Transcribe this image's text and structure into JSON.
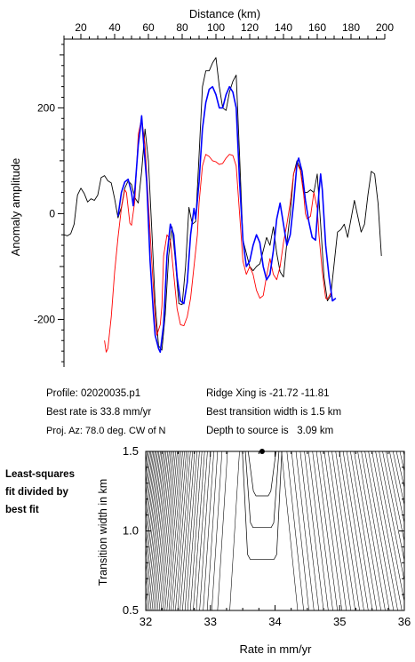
{
  "chart_data": [
    {
      "type": "line",
      "xlabel": "Distance (km)",
      "ylabel": "Anomaly amplitude",
      "xlim": [
        10,
        200
      ],
      "ylim": [
        -290,
        330
      ],
      "xticks": [
        20,
        40,
        60,
        80,
        100,
        120,
        140,
        160,
        180,
        200
      ],
      "yticks": [
        -200,
        0,
        200
      ],
      "grid": false,
      "series": [
        {
          "color": "#000000",
          "points": [
            [
              10,
              -40
            ],
            [
              12,
              -42
            ],
            [
              14,
              -38
            ],
            [
              16,
              -20
            ],
            [
              18,
              35
            ],
            [
              20,
              48
            ],
            [
              22,
              38
            ],
            [
              24,
              22
            ],
            [
              26,
              28
            ],
            [
              28,
              25
            ],
            [
              30,
              35
            ],
            [
              32,
              68
            ],
            [
              34,
              72
            ],
            [
              36,
              62
            ],
            [
              38,
              58
            ],
            [
              40,
              28
            ],
            [
              42,
              -8
            ],
            [
              44,
              12
            ],
            [
              46,
              48
            ],
            [
              48,
              62
            ],
            [
              50,
              55
            ],
            [
              52,
              30
            ],
            [
              54,
              20
            ],
            [
              56,
              80
            ],
            [
              58,
              160
            ],
            [
              60,
              100
            ],
            [
              62,
              -30
            ],
            [
              64,
              -170
            ],
            [
              66,
              -250
            ],
            [
              68,
              -258
            ],
            [
              70,
              -190
            ],
            [
              72,
              -80
            ],
            [
              74,
              -25
            ],
            [
              76,
              -90
            ],
            [
              78,
              -170
            ],
            [
              80,
              -172
            ],
            [
              82,
              -100
            ],
            [
              84,
              12
            ],
            [
              86,
              -20
            ],
            [
              88,
              -15
            ],
            [
              90,
              110
            ],
            [
              92,
              240
            ],
            [
              94,
              270
            ],
            [
              96,
              270
            ],
            [
              98,
              285
            ],
            [
              100,
              295
            ],
            [
              102,
              240
            ],
            [
              104,
              200
            ],
            [
              106,
              195
            ],
            [
              108,
              230
            ],
            [
              110,
              250
            ],
            [
              112,
              262
            ],
            [
              114,
              110
            ],
            [
              116,
              -50
            ],
            [
              118,
              -75
            ],
            [
              120,
              -100
            ],
            [
              122,
              -108
            ],
            [
              124,
              -100
            ],
            [
              126,
              -95
            ],
            [
              128,
              -70
            ],
            [
              130,
              -45
            ],
            [
              132,
              -60
            ],
            [
              134,
              -25
            ],
            [
              136,
              -75
            ],
            [
              138,
              -110
            ],
            [
              140,
              -120
            ],
            [
              142,
              -55
            ],
            [
              144,
              0
            ],
            [
              146,
              75
            ],
            [
              148,
              100
            ],
            [
              150,
              85
            ],
            [
              152,
              40
            ],
            [
              154,
              40
            ],
            [
              156,
              45
            ],
            [
              158,
              40
            ],
            [
              160,
              75
            ],
            [
              162,
              -20
            ],
            [
              164,
              -120
            ],
            [
              166,
              -165
            ],
            [
              168,
              -155
            ],
            [
              170,
              -95
            ],
            [
              172,
              -35
            ],
            [
              174,
              -30
            ],
            [
              176,
              -20
            ],
            [
              178,
              -45
            ],
            [
              180,
              -10
            ],
            [
              182,
              25
            ],
            [
              184,
              -5
            ],
            [
              186,
              -35
            ],
            [
              188,
              -20
            ],
            [
              190,
              35
            ],
            [
              192,
              80
            ],
            [
              194,
              75
            ],
            [
              196,
              20
            ],
            [
              198,
              -80
            ]
          ]
        },
        {
          "color": "#ff0000",
          "points": [
            [
              34,
              -240
            ],
            [
              35,
              -262
            ],
            [
              36,
              -255
            ],
            [
              38,
              -195
            ],
            [
              40,
              -110
            ],
            [
              42,
              -45
            ],
            [
              44,
              10
            ],
            [
              46,
              45
            ],
            [
              47,
              40
            ],
            [
              49,
              -18
            ],
            [
              50,
              -22
            ],
            [
              52,
              25
            ],
            [
              54,
              150
            ],
            [
              56,
              180
            ],
            [
              58,
              130
            ],
            [
              60,
              20
            ],
            [
              62,
              -90
            ],
            [
              64,
              -195
            ],
            [
              65,
              -230
            ],
            [
              67,
              -210
            ],
            [
              68,
              -175
            ],
            [
              69,
              -80
            ],
            [
              71,
              -40
            ],
            [
              73,
              -50
            ],
            [
              75,
              -115
            ],
            [
              77,
              -180
            ],
            [
              79,
              -210
            ],
            [
              81,
              -212
            ],
            [
              83,
              -195
            ],
            [
              85,
              -160
            ],
            [
              87,
              -100
            ],
            [
              89,
              -40
            ],
            [
              90,
              20
            ],
            [
              92,
              90
            ],
            [
              94,
              112
            ],
            [
              96,
              108
            ],
            [
              98,
              100
            ],
            [
              100,
              98
            ],
            [
              102,
              93
            ],
            [
              104,
              95
            ],
            [
              106,
              105
            ],
            [
              108,
              112
            ],
            [
              110,
              110
            ],
            [
              112,
              90
            ],
            [
              114,
              0
            ],
            [
              116,
              -90
            ],
            [
              118,
              -115
            ],
            [
              120,
              -100
            ],
            [
              122,
              -115
            ],
            [
              124,
              -145
            ],
            [
              126,
              -160
            ],
            [
              128,
              -155
            ],
            [
              130,
              -118
            ],
            [
              132,
              -85
            ],
            [
              134,
              -115
            ],
            [
              136,
              -125
            ],
            [
              138,
              -100
            ],
            [
              140,
              -55
            ],
            [
              142,
              -20
            ],
            [
              144,
              20
            ],
            [
              146,
              75
            ],
            [
              148,
              95
            ],
            [
              150,
              82
            ],
            [
              152,
              35
            ],
            [
              153,
              0
            ],
            [
              154,
              -10
            ],
            [
              156,
              -5
            ],
            [
              158,
              40
            ],
            [
              160,
              10
            ],
            [
              161,
              -40
            ],
            [
              163,
              -110
            ],
            [
              165,
              -160
            ],
            [
              166,
              -162
            ],
            [
              168,
              -150
            ]
          ]
        },
        {
          "color": "#0000ff",
          "points": [
            [
              42,
              -5
            ],
            [
              44,
              40
            ],
            [
              46,
              60
            ],
            [
              48,
              65
            ],
            [
              50,
              40
            ],
            [
              51,
              15
            ],
            [
              52,
              45
            ],
            [
              54,
              130
            ],
            [
              55,
              155
            ],
            [
              56,
              185
            ],
            [
              57,
              140
            ],
            [
              59,
              60
            ],
            [
              61,
              -90
            ],
            [
              63,
              -190
            ],
            [
              64,
              -230
            ],
            [
              66,
              -255
            ],
            [
              67,
              -262
            ],
            [
              69,
              -210
            ],
            [
              71,
              -80
            ],
            [
              73,
              -20
            ],
            [
              75,
              -40
            ],
            [
              77,
              -120
            ],
            [
              79,
              -165
            ],
            [
              81,
              -170
            ],
            [
              83,
              -130
            ],
            [
              85,
              -40
            ],
            [
              87,
              10
            ],
            [
              88,
              -10
            ],
            [
              90,
              60
            ],
            [
              92,
              160
            ],
            [
              94,
              210
            ],
            [
              96,
              235
            ],
            [
              98,
              240
            ],
            [
              100,
              225
            ],
            [
              102,
              200
            ],
            [
              104,
              200
            ],
            [
              106,
              225
            ],
            [
              108,
              240
            ],
            [
              110,
              230
            ],
            [
              112,
              200
            ],
            [
              114,
              60
            ],
            [
              116,
              -50
            ],
            [
              118,
              -100
            ],
            [
              120,
              -90
            ],
            [
              122,
              -60
            ],
            [
              124,
              -40
            ],
            [
              126,
              -55
            ],
            [
              128,
              -100
            ],
            [
              130,
              -125
            ],
            [
              132,
              -115
            ],
            [
              134,
              -70
            ],
            [
              136,
              -10
            ],
            [
              138,
              20
            ],
            [
              140,
              -20
            ],
            [
              142,
              -60
            ],
            [
              144,
              -40
            ],
            [
              146,
              20
            ],
            [
              148,
              95
            ],
            [
              149,
              105
            ],
            [
              151,
              80
            ],
            [
              153,
              25
            ],
            [
              155,
              -15
            ],
            [
              157,
              -45
            ],
            [
              159,
              -50
            ],
            [
              161,
              40
            ],
            [
              162,
              75
            ],
            [
              163,
              45
            ],
            [
              165,
              -60
            ],
            [
              167,
              -120
            ],
            [
              169,
              -165
            ],
            [
              171,
              -160
            ]
          ]
        }
      ]
    },
    {
      "type": "line",
      "xlabel": "Rate in mm/yr",
      "ylabel": "Transition width in km",
      "xlim": [
        32,
        36
      ],
      "ylim": [
        0.5,
        1.5
      ],
      "xticks": [
        32,
        33,
        34,
        35,
        36
      ],
      "yticks": [
        0.5,
        1.0,
        1.5
      ],
      "grid": false,
      "best_fit": {
        "rate": 33.8,
        "width": 1.5
      },
      "contour_count": 70,
      "contour_color": "#000000"
    }
  ],
  "info": {
    "profile": "Profile: 02020035.p1",
    "best_rate": "Best rate is 33.8 mm/yr",
    "proj_az": "Proj. Az: 78.0 deg. CW of N",
    "ridge_xing": "Ridge Xing is -21.72 -11.81",
    "best_width": "Best transition width is 1.5 km",
    "depth": "Depth to source is   3.09 km"
  },
  "note": [
    "Least-squares",
    "fit divided by",
    "best fit"
  ]
}
